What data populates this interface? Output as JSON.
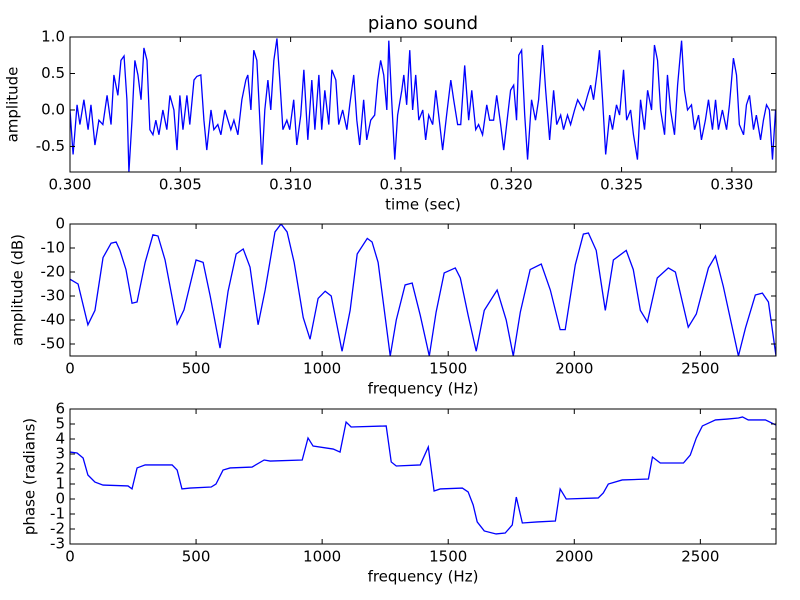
{
  "chart_data": [
    {
      "type": "line",
      "title": "piano sound",
      "xlabel": "time (sec)",
      "ylabel": "amplitude",
      "xlim": [
        0.3,
        0.332
      ],
      "ylim": [
        -0.85,
        1.0
      ],
      "xticks": [
        {
          "value": 0.3,
          "label": "0.300"
        },
        0.305,
        {
          "value": 0.31,
          "label": "0.310"
        },
        0.315,
        {
          "value": 0.32,
          "label": "0.320"
        },
        0.325,
        {
          "value": 0.33,
          "label": "0.330"
        }
      ],
      "yticks": [
        -0.5,
        {
          "value": 0,
          "label": "0.0"
        },
        0.5,
        {
          "value": 1,
          "label": "1.0"
        }
      ],
      "x": [
        0.3,
        0.30014,
        0.30032,
        0.30045,
        0.30063,
        0.30082,
        0.30095,
        0.30113,
        0.30131,
        0.30149,
        0.30168,
        0.30186,
        0.30199,
        0.30217,
        0.30231,
        0.30245,
        0.30258,
        0.30267,
        0.30281,
        0.30294,
        0.30308,
        0.30322,
        0.30335,
        0.30349,
        0.30362,
        0.30376,
        0.30389,
        0.30403,
        0.30421,
        0.30439,
        0.30453,
        0.30471,
        0.30485,
        0.30498,
        0.30512,
        0.3053,
        0.30543,
        0.30562,
        0.30575,
        0.30593,
        0.30607,
        0.3062,
        0.30639,
        0.30652,
        0.3067,
        0.30684,
        0.30702,
        0.30716,
        0.30729,
        0.30743,
        0.30761,
        0.30779,
        0.30797,
        0.30806,
        0.3082,
        0.30833,
        0.30847,
        0.30856,
        0.3087,
        0.30883,
        0.30897,
        0.3091,
        0.30924,
        0.30938,
        0.30951,
        0.30965,
        0.30983,
        0.30996,
        0.31014,
        0.31028,
        0.31046,
        0.3106,
        0.31078,
        0.31096,
        0.3111,
        0.31128,
        0.31141,
        0.31155,
        0.31173,
        0.31187,
        0.31205,
        0.31218,
        0.31236,
        0.31255,
        0.31268,
        0.31286,
        0.313,
        0.31313,
        0.31331,
        0.31345,
        0.31363,
        0.31381,
        0.31395,
        0.31408,
        0.31422,
        0.31436,
        0.31445,
        0.31458,
        0.31472,
        0.31485,
        0.31504,
        0.31513,
        0.31526,
        0.3154,
        0.31553,
        0.31567,
        0.31581,
        0.31599,
        0.31612,
        0.31626,
        0.31644,
        0.31658,
        0.31676,
        0.31689,
        0.31707,
        0.31726,
        0.31739,
        0.31757,
        0.31771,
        0.31789,
        0.31807,
        0.31821,
        0.31839,
        0.31852,
        0.3187,
        0.31889,
        0.31902,
        0.3192,
        0.31934,
        0.31952,
        0.31966,
        0.31984,
        0.31997,
        0.32011,
        0.32024,
        0.32034,
        0.32047,
        0.32061,
        0.32074,
        0.32092,
        0.3211,
        0.32124,
        0.32142,
        0.32156,
        0.32174,
        0.32192,
        0.32206,
        0.32224,
        0.32237,
        0.32255,
        0.32269,
        0.32287,
        0.32301,
        0.32314,
        0.32328,
        0.32346,
        0.3236,
        0.32373,
        0.32391,
        0.324,
        0.32414,
        0.32428,
        0.32446,
        0.32459,
        0.32477,
        0.32491,
        0.32509,
        0.32523,
        0.32541,
        0.32554,
        0.32572,
        0.32586,
        0.32604,
        0.32618,
        0.32636,
        0.32649,
        0.32663,
        0.32677,
        0.32695,
        0.32708,
        0.32722,
        0.3274,
        0.32754,
        0.32772,
        0.32785,
        0.32799,
        0.32817,
        0.32831,
        0.32849,
        0.32862,
        0.3288,
        0.32894,
        0.32912,
        0.32926,
        0.32939,
        0.32957,
        0.32976,
        0.32989,
        0.33007,
        0.33021,
        0.33034,
        0.33053,
        0.33066,
        0.3308,
        0.33098,
        0.33111,
        0.3313,
        0.33143,
        0.33157,
        0.3317,
        0.33184,
        0.33198
      ],
      "series": [
        {
          "color": "#0000ff",
          "values": [
            0,
            -0.61,
            0.07,
            -0.2,
            0.14,
            -0.27,
            0.07,
            -0.48,
            -0.14,
            -0.2,
            0.2,
            -0.2,
            0.48,
            0.2,
            0.68,
            0.74,
            0.14,
            -0.85,
            -0.14,
            0.68,
            0.48,
            0.14,
            0.85,
            0.68,
            -0.27,
            -0.34,
            -0.14,
            -0.34,
            0,
            -0.27,
            0.2,
            0,
            -0.55,
            0.2,
            -0.27,
            0.2,
            -0.2,
            0.41,
            0.46,
            0.48,
            -0.14,
            -0.55,
            0,
            -0.27,
            -0.2,
            -0.34,
            0,
            -0.14,
            -0.27,
            -0.14,
            -0.34,
            0.14,
            0.41,
            0.48,
            0,
            0.82,
            0.68,
            0.14,
            -0.75,
            0,
            0.41,
            0,
            0.68,
            0.98,
            0.41,
            -0.27,
            -0.14,
            -0.27,
            0.14,
            -0.48,
            -0.07,
            0.55,
            -0.41,
            0.41,
            -0.27,
            0.48,
            -0.27,
            0.27,
            -0.2,
            0.55,
            0.41,
            -0.2,
            0,
            -0.27,
            0.07,
            0.48,
            -0.14,
            -0.48,
            0.14,
            -0.41,
            -0.14,
            -0.07,
            0.41,
            0.68,
            0.48,
            0,
            0.95,
            0.14,
            -0.68,
            -0.07,
            0.27,
            0.48,
            0.07,
            0.82,
            0,
            0.48,
            -0.14,
            0,
            -0.41,
            -0.07,
            -0.2,
            0.27,
            -0.2,
            -0.55,
            -0.07,
            0.41,
            0.14,
            -0.2,
            -0.2,
            0.61,
            -0.14,
            0.27,
            -0.27,
            -0.2,
            -0.34,
            0.07,
            -0.14,
            -0.14,
            0.2,
            -0.2,
            -0.55,
            -0.07,
            0.27,
            0.34,
            -0.14,
            0.75,
            0.82,
            -0.07,
            -0.68,
            0.14,
            -0.14,
            0.14,
            0.89,
            0.27,
            -0.41,
            0.27,
            -0.2,
            -0.07,
            -0.27,
            -0.07,
            -0.2,
            0,
            0.14,
            0.07,
            0,
            0.2,
            0.34,
            0.14,
            0.55,
            0.82,
            0.14,
            -0.61,
            -0.07,
            -0.27,
            0.07,
            -0.07,
            0.55,
            -0.14,
            0,
            -0.34,
            -0.68,
            0.14,
            -0.27,
            0.27,
            0,
            0.89,
            0.68,
            0,
            -0.34,
            0.48,
            0,
            -0.34,
            0.34,
            0.95,
            0.27,
            0,
            0.07,
            -0.27,
            -0.07,
            -0.41,
            -0.14,
            0.14,
            -0.27,
            0.14,
            -0.27,
            0,
            -0.27,
            0.07,
            0.71,
            0.48,
            -0.2,
            -0.34,
            0.07,
            0.2,
            -0.27,
            -0.07,
            -0.41,
            -0.14,
            0.07,
            0,
            -0.68,
            0
          ]
        }
      ]
    },
    {
      "type": "line",
      "xlabel": "frequency (Hz)",
      "ylabel": "amplitude (dB)",
      "xlim": [
        0,
        2800
      ],
      "ylim": [
        -55,
        0
      ],
      "xticks": [
        0,
        500,
        1000,
        1500,
        2000,
        2500
      ],
      "yticks": [
        -50,
        -40,
        -30,
        -20,
        -10,
        0
      ],
      "x": [
        0,
        32,
        71,
        99,
        131,
        163,
        183,
        198,
        222,
        246,
        266,
        298,
        329,
        349,
        377,
        425,
        452,
        500,
        528,
        556,
        595,
        627,
        659,
        687,
        714,
        746,
        774,
        813,
        837,
        861,
        889,
        925,
        952,
        984,
        1012,
        1036,
        1079,
        1111,
        1139,
        1179,
        1198,
        1222,
        1270,
        1294,
        1329,
        1357,
        1389,
        1425,
        1452,
        1484,
        1528,
        1548,
        1579,
        1611,
        1643,
        1694,
        1730,
        1758,
        1786,
        1825,
        1869,
        1905,
        1944,
        1964,
        2004,
        2036,
        2056,
        2087,
        2123,
        2155,
        2206,
        2234,
        2262,
        2290,
        2329,
        2373,
        2401,
        2452,
        2484,
        2532,
        2560,
        2591,
        2651,
        2679,
        2718,
        2746,
        2770,
        2800
      ],
      "series": [
        {
          "color": "#0000ff",
          "values": [
            -23,
            -25,
            -42,
            -36,
            -14,
            -8,
            -7.5,
            -11,
            -19,
            -33,
            -32.5,
            -16,
            -4.5,
            -5,
            -15,
            -41.7,
            -35.8,
            -15,
            -16,
            -30,
            -51.7,
            -28,
            -12.5,
            -10.4,
            -18,
            -42,
            -27.5,
            -3.3,
            0,
            -3.3,
            -16,
            -39,
            -48,
            -31,
            -28,
            -30,
            -53,
            -36,
            -12.5,
            -6,
            -7.5,
            -16,
            -55,
            -40,
            -25.4,
            -24.6,
            -38,
            -55,
            -36.7,
            -20.4,
            -18.3,
            -22.5,
            -38,
            -53,
            -36,
            -27.5,
            -40,
            -55,
            -36.7,
            -19,
            -16.7,
            -27.5,
            -44,
            -44,
            -17,
            -4.2,
            -3.75,
            -11,
            -36,
            -15,
            -11,
            -19,
            -36,
            -40.8,
            -22.5,
            -18.3,
            -20,
            -43,
            -37.5,
            -18.3,
            -13.3,
            -26,
            -55,
            -43.3,
            -29.6,
            -28.8,
            -32.5,
            -55
          ]
        }
      ]
    },
    {
      "type": "line",
      "xlabel": "frequency (Hz)",
      "ylabel": "phase (radians)",
      "xlim": [
        0,
        2800
      ],
      "ylim": [
        -3,
        6
      ],
      "xticks": [
        0,
        500,
        1000,
        1500,
        2000,
        2500
      ],
      "yticks": [
        -3,
        -2,
        -1,
        0,
        1,
        2,
        3,
        4,
        5,
        6
      ],
      "x": [
        0,
        28,
        52,
        71,
        99,
        131,
        230,
        246,
        266,
        298,
        405,
        425,
        444,
        476,
        560,
        579,
        607,
        635,
        722,
        770,
        794,
        921,
        944,
        964,
        1044,
        1071,
        1095,
        1115,
        1254,
        1274,
        1294,
        1389,
        1421,
        1444,
        1468,
        1556,
        1579,
        1599,
        1615,
        1643,
        1690,
        1726,
        1754,
        1770,
        1794,
        1853,
        1925,
        1944,
        1968,
        2095,
        2115,
        2135,
        2190,
        2294,
        2310,
        2341,
        2433,
        2460,
        2484,
        2508,
        2560,
        2607,
        2651,
        2667,
        2690,
        2758,
        2800
      ],
      "series": [
        {
          "color": "#0000ff",
          "values": [
            3.13,
            3.07,
            2.73,
            1.6,
            1.13,
            0.93,
            0.87,
            0.67,
            2.07,
            2.27,
            2.27,
            1.93,
            0.67,
            0.73,
            0.8,
            1,
            1.93,
            2.07,
            2.13,
            2.6,
            2.53,
            2.6,
            4.07,
            3.53,
            3.33,
            3.13,
            5.13,
            4.8,
            4.87,
            2.47,
            2.2,
            2.27,
            3.47,
            0.53,
            0.67,
            0.73,
            0.47,
            -0.4,
            -1.53,
            -2.13,
            -2.33,
            -2.27,
            -1.73,
            0.13,
            -1.6,
            -1.53,
            -1.47,
            0.67,
            0,
            0.07,
            0.4,
            1,
            1.27,
            1.33,
            2.8,
            2.4,
            2.4,
            2.93,
            4.07,
            4.87,
            5.27,
            5.33,
            5.4,
            5.47,
            5.27,
            5.27,
            4.93
          ]
        }
      ]
    }
  ]
}
